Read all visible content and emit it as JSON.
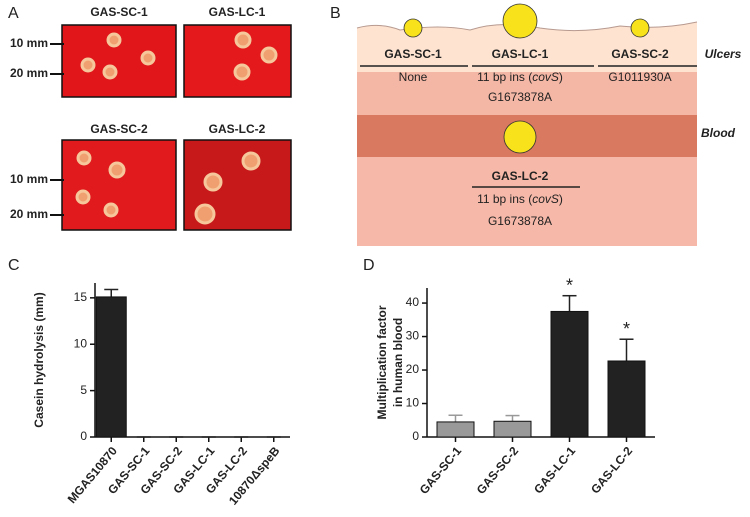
{
  "panel_a": {
    "label": "A",
    "plates": [
      "GAS-SC-1",
      "GAS-LC-1",
      "GAS-SC-2",
      "GAS-LC-2"
    ],
    "scale": [
      "10 mm",
      "20 mm",
      "10 mm",
      "20 mm"
    ]
  },
  "panel_b": {
    "label": "B",
    "strains": [
      {
        "name": "GAS-SC-1",
        "mutation": [
          "None"
        ]
      },
      {
        "name": "GAS-LC-1",
        "mutation": [
          "11 bp ins (",
          "covS",
          ")"
        ],
        "snp": "G1673878A"
      },
      {
        "name": "GAS-SC-2",
        "mutation": [
          "G1011930A"
        ]
      }
    ],
    "ulcers": "Ulcers",
    "blood": "Blood",
    "blood_strain": {
      "name": "GAS-LC-2",
      "mutation": [
        "11 bp ins (",
        "covS",
        ")"
      ],
      "snp": "G1673878A"
    }
  },
  "chart_data": [
    {
      "type": "bar",
      "label": "C",
      "ylabel": [
        "Casein hydrolysis (mm)"
      ],
      "categories": [
        "MGAS10870",
        "GAS-SC-1",
        "GAS-SC-2",
        "GAS-LC-1",
        "GAS-LC-2",
        "10870ΔspeB"
      ],
      "values": [
        15.1,
        0,
        0,
        0,
        0,
        0
      ],
      "errors": [
        0.8,
        0,
        0,
        0,
        0,
        0
      ],
      "colors": [
        "#222222",
        "#222222",
        "#222222",
        "#222222",
        "#222222",
        "#222222"
      ],
      "ylim": [
        0,
        16.6
      ],
      "yticks": [
        0,
        5,
        10,
        15
      ]
    },
    {
      "type": "bar",
      "label": "D",
      "ylabel": [
        "Multiplication factor",
        "in human blood"
      ],
      "categories": [
        "GAS-SC-1",
        "GAS-SC-2",
        "GAS-LC-1",
        "GAS-LC-2"
      ],
      "values": [
        4.5,
        4.7,
        37.5,
        22.7
      ],
      "errors": [
        2,
        1.7,
        4.7,
        6.5
      ],
      "colors": [
        "#999999",
        "#999999",
        "#222222",
        "#222222"
      ],
      "ylim": [
        0,
        44.5
      ],
      "yticks": [
        0,
        10,
        20,
        30,
        40
      ],
      "annotations": [
        {
          "text": "*",
          "category": "GAS-LC-1"
        },
        {
          "text": "*",
          "category": "GAS-LC-2"
        }
      ]
    }
  ]
}
